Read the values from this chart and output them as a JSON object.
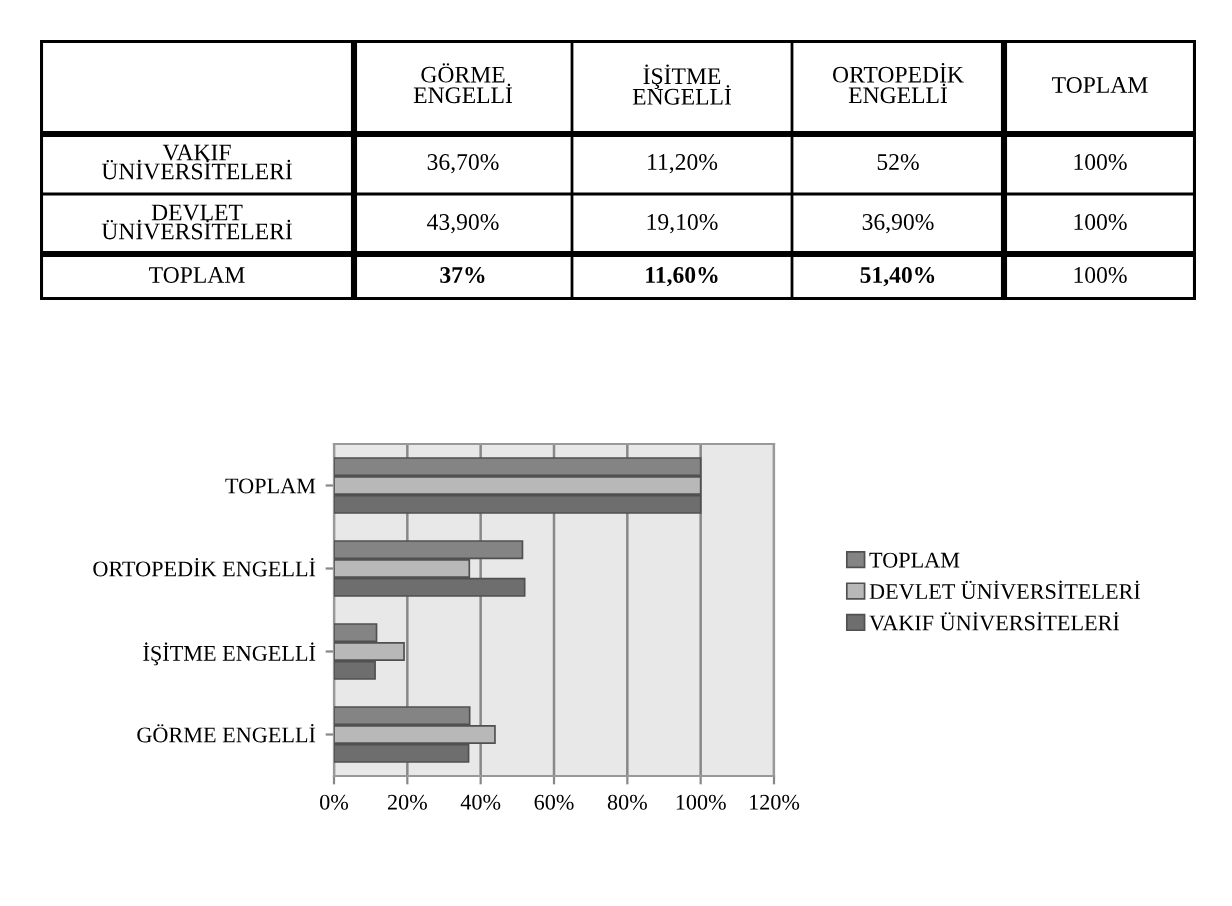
{
  "chart_data": {
    "type": "bar",
    "orientation": "horizontal",
    "categories": [
      "TOPLAM",
      "ORTOPEDİK ENGELLİ",
      "İŞİTME ENGELLİ",
      "GÖRME ENGELLİ"
    ],
    "series": [
      {
        "name": "TOPLAM",
        "color": "#848484",
        "values": [
          100,
          51.4,
          11.6,
          37
        ]
      },
      {
        "name": "DEVLET ÜNİVERSİTELERİ",
        "color": "#b8b8b8",
        "values": [
          100,
          36.9,
          19.1,
          43.9
        ]
      },
      {
        "name": "VAKIF ÜNİVERSİTELERİ",
        "color": "#6e6e6e",
        "values": [
          100,
          52,
          11.2,
          36.7
        ]
      }
    ],
    "annotations": [
      "36,70%",
      "11,20%",
      "52%",
      "100%",
      "43,90%",
      "19,10%",
      "36,90%",
      "100%",
      "37%",
      "11,60%",
      "51,40%",
      "100%"
    ],
    "xlim": [
      0,
      120
    ],
    "xticks": [
      {
        "value": 0,
        "label": "0%"
      },
      {
        "value": 20,
        "label": "20%"
      },
      {
        "value": 40,
        "label": "40%"
      },
      {
        "value": 60,
        "label": "60%"
      },
      {
        "value": 80,
        "label": "80%"
      },
      {
        "value": 100,
        "label": "100%"
      },
      {
        "value": 120,
        "label": "120%"
      }
    ],
    "grid": "x",
    "legend": "right"
  }
}
